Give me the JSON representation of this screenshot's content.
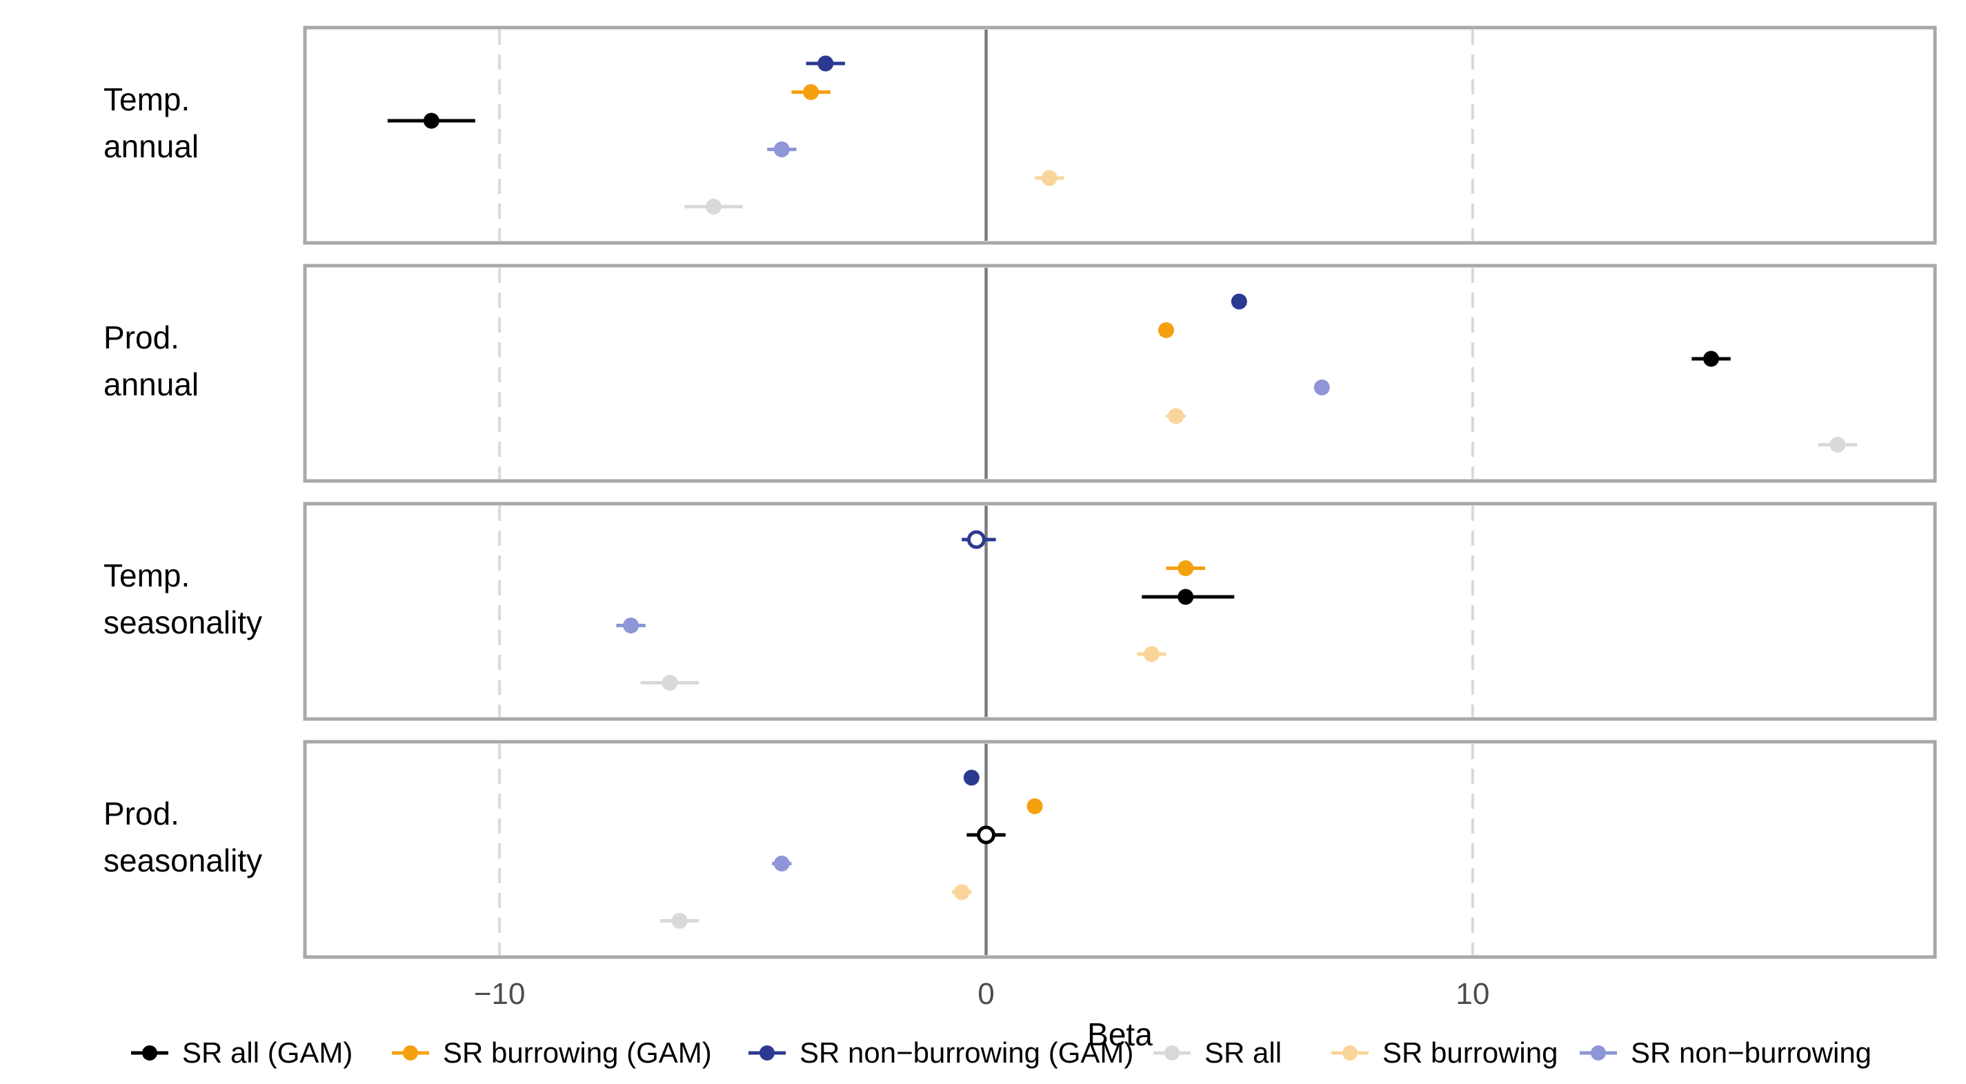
{
  "chart_data": {
    "type": "scatter",
    "subtype": "coefficient plot with horizontal confidence intervals",
    "xlabel": "Beta",
    "xlim": [
      -14.0,
      19.5
    ],
    "xticks": [
      -10,
      0,
      10
    ],
    "grid": "dashed vertical gridlines at -10 and 10, solid reference line at 0",
    "legend_position": "bottom",
    "series": [
      {
        "name": "SR all (GAM)",
        "color": "#000000"
      },
      {
        "name": "SR burrowing (GAM)",
        "color": "#f5a00f"
      },
      {
        "name": "SR non−burrowing (GAM)",
        "color": "#2b3990"
      },
      {
        "name": "SR all",
        "color": "#d9d9d9"
      },
      {
        "name": "SR burrowing",
        "color": "#fad59a"
      },
      {
        "name": "SR non−burrowing",
        "color": "#8e96d8"
      }
    ],
    "panels": [
      {
        "label": [
          "Temp.",
          "annual"
        ],
        "points": [
          {
            "series": "SR non−burrowing (GAM)",
            "beta": -3.3,
            "lo": -3.7,
            "hi": -2.9,
            "hollow": false
          },
          {
            "series": "SR burrowing (GAM)",
            "beta": -3.6,
            "lo": -4.0,
            "hi": -3.2,
            "hollow": false
          },
          {
            "series": "SR all (GAM)",
            "beta": -11.4,
            "lo": -12.3,
            "hi": -10.5,
            "hollow": false
          },
          {
            "series": "SR non−burrowing",
            "beta": -4.2,
            "lo": -4.5,
            "hi": -3.9,
            "hollow": false
          },
          {
            "series": "SR burrowing",
            "beta": 1.3,
            "lo": 1.0,
            "hi": 1.6,
            "hollow": false
          },
          {
            "series": "SR all",
            "beta": -5.6,
            "lo": -6.2,
            "hi": -5.0,
            "hollow": false
          }
        ]
      },
      {
        "label": [
          "Prod.",
          "annual"
        ],
        "points": [
          {
            "series": "SR non−burrowing (GAM)",
            "beta": 5.2,
            "lo": 5.1,
            "hi": 5.3,
            "hollow": false
          },
          {
            "series": "SR burrowing (GAM)",
            "beta": 3.7,
            "lo": 3.6,
            "hi": 3.8,
            "hollow": false
          },
          {
            "series": "SR all (GAM)",
            "beta": 14.9,
            "lo": 14.5,
            "hi": 15.3,
            "hollow": false
          },
          {
            "series": "SR non−burrowing",
            "beta": 6.9,
            "lo": 6.75,
            "hi": 7.05,
            "hollow": false
          },
          {
            "series": "SR burrowing",
            "beta": 3.9,
            "lo": 3.7,
            "hi": 4.1,
            "hollow": false
          },
          {
            "series": "SR all",
            "beta": 17.5,
            "lo": 17.1,
            "hi": 17.9,
            "hollow": false
          }
        ]
      },
      {
        "label": [
          "Temp.",
          "seasonality"
        ],
        "points": [
          {
            "series": "SR non−burrowing (GAM)",
            "beta": -0.2,
            "lo": -0.5,
            "hi": 0.2,
            "hollow": true
          },
          {
            "series": "SR burrowing (GAM)",
            "beta": 4.1,
            "lo": 3.7,
            "hi": 4.5,
            "hollow": false
          },
          {
            "series": "SR all (GAM)",
            "beta": 4.1,
            "lo": 3.2,
            "hi": 5.1,
            "hollow": false
          },
          {
            "series": "SR non−burrowing",
            "beta": -7.3,
            "lo": -7.6,
            "hi": -7.0,
            "hollow": false
          },
          {
            "series": "SR burrowing",
            "beta": 3.4,
            "lo": 3.1,
            "hi": 3.7,
            "hollow": false
          },
          {
            "series": "SR all",
            "beta": -6.5,
            "lo": -7.1,
            "hi": -5.9,
            "hollow": false
          }
        ]
      },
      {
        "label": [
          "Prod.",
          "seasonality"
        ],
        "points": [
          {
            "series": "SR non−burrowing (GAM)",
            "beta": -0.3,
            "lo": -0.4,
            "hi": -0.2,
            "hollow": false
          },
          {
            "series": "SR burrowing (GAM)",
            "beta": 1.0,
            "lo": 0.9,
            "hi": 1.1,
            "hollow": false
          },
          {
            "series": "SR all (GAM)",
            "beta": 0.0,
            "lo": -0.4,
            "hi": 0.4,
            "hollow": true
          },
          {
            "series": "SR non−burrowing",
            "beta": -4.2,
            "lo": -4.4,
            "hi": -4.0,
            "hollow": false
          },
          {
            "series": "SR burrowing",
            "beta": -0.5,
            "lo": -0.7,
            "hi": -0.3,
            "hollow": false
          },
          {
            "series": "SR all",
            "beta": -6.3,
            "lo": -6.7,
            "hi": -5.9,
            "hollow": false
          }
        ]
      }
    ]
  }
}
